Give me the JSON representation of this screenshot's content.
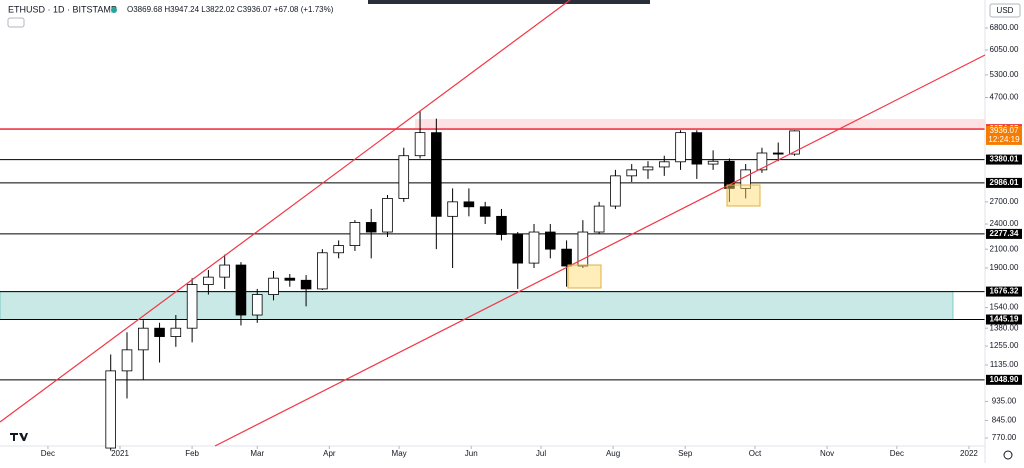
{
  "chart_data": {
    "type": "candlestick",
    "title": "ETHUSD · 1D · BITSTAMP",
    "subtitle": "O3869.68 H3947.24 L3822.02 C3936.07 +67.08 (+1.73%)",
    "currency": "USD",
    "last_price": 3936.07,
    "countdown": "12:24:19",
    "log_scale": true,
    "up_color": "#ffffff",
    "down_color": "#000000",
    "ylim": [
      738,
      7890
    ],
    "xlim": [
      -51.6,
      371.9
    ],
    "yticks": [
      {
        "value": 6800,
        "label": "6800.00"
      },
      {
        "value": 6050,
        "label": "6050.00"
      },
      {
        "value": 5300,
        "label": "5300.00"
      },
      {
        "value": 4700,
        "label": "4700.00"
      },
      {
        "value": 2700,
        "label": "2700.00"
      },
      {
        "value": 2400,
        "label": "2400.00"
      },
      {
        "value": 2100,
        "label": "2100.00"
      },
      {
        "value": 1900,
        "label": "1900.00"
      },
      {
        "value": 1540,
        "label": "1540.00"
      },
      {
        "value": 1380,
        "label": "1380.00"
      },
      {
        "value": 1255,
        "label": "1255.00"
      },
      {
        "value": 1135,
        "label": "1135.00"
      },
      {
        "value": 935,
        "label": "935.00"
      },
      {
        "value": 845,
        "label": "845.00"
      },
      {
        "value": 770,
        "label": "770.00"
      }
    ],
    "xticks": [
      {
        "value": -31,
        "label": "Dec"
      },
      {
        "value": 0,
        "label": "2021"
      },
      {
        "value": 31,
        "label": "Feb"
      },
      {
        "value": 59,
        "label": "Mar"
      },
      {
        "value": 90,
        "label": "Apr"
      },
      {
        "value": 120,
        "label": "May"
      },
      {
        "value": 151,
        "label": "Jun"
      },
      {
        "value": 181,
        "label": "Jul"
      },
      {
        "value": 212,
        "label": "Aug"
      },
      {
        "value": 243,
        "label": "Sep"
      },
      {
        "value": 273,
        "label": "Oct"
      },
      {
        "value": 304,
        "label": "Nov"
      },
      {
        "value": 334,
        "label": "Dec"
      },
      {
        "value": 365,
        "label": "2022"
      }
    ],
    "levels": [
      {
        "value": 3974.25,
        "label": "3974.25",
        "color": "#f23645"
      },
      {
        "value": 3380.01,
        "label": "3380.01",
        "color": "#000000"
      },
      {
        "value": 2986.01,
        "label": "2986.01",
        "color": "#000000"
      },
      {
        "value": 2277.34,
        "label": "2277.34",
        "color": "#000000"
      },
      {
        "value": 1676.32,
        "label": "1676.32",
        "color": "#000000"
      },
      {
        "value": 1445.19,
        "label": "1445.19",
        "color": "#000000"
      },
      {
        "value": 1048.9,
        "label": "1048.90",
        "color": "#000000"
      }
    ],
    "x": [
      -4,
      3,
      10,
      17,
      24,
      31,
      38,
      45,
      52,
      59,
      66,
      73,
      80,
      87,
      94,
      101,
      108,
      115,
      122,
      129,
      136,
      143,
      150,
      157,
      164,
      171,
      178,
      185,
      192,
      199,
      206,
      213,
      220,
      227,
      234,
      241,
      248,
      255,
      262,
      269,
      276,
      283,
      290
    ],
    "open": [
      730,
      1100,
      1230,
      1380,
      1320,
      1380,
      1740,
      1810,
      1930,
      1480,
      1650,
      1800,
      1780,
      1700,
      2060,
      2140,
      2420,
      2300,
      2750,
      3450,
      3900,
      2500,
      2700,
      2630,
      2500,
      2270,
      1950,
      2300,
      2100,
      1920,
      2300,
      2640,
      3100,
      3200,
      3250,
      3340,
      3900,
      3300,
      3350,
      2900,
      3200,
      3500,
      3480
    ],
    "high": [
      1200,
      1350,
      1440,
      1420,
      1480,
      1800,
      1880,
      2040,
      1960,
      1700,
      1870,
      1840,
      1830,
      2100,
      2200,
      2450,
      2600,
      2800,
      3600,
      4380,
      4200,
      2900,
      2900,
      2700,
      2600,
      2300,
      2400,
      2400,
      2200,
      2450,
      2700,
      3200,
      3300,
      3350,
      3450,
      3950,
      3950,
      3550,
      3400,
      3300,
      3600,
      3700,
      3950
    ],
    "low": [
      720,
      950,
      1050,
      1150,
      1250,
      1280,
      1650,
      1700,
      1400,
      1420,
      1600,
      1720,
      1550,
      1690,
      2000,
      2080,
      2000,
      2240,
      2700,
      3400,
      2100,
      1900,
      2500,
      2400,
      2200,
      1700,
      1900,
      2000,
      1720,
      1900,
      2280,
      2600,
      3000,
      3050,
      3100,
      3200,
      3050,
      3200,
      2700,
      2750,
      3150,
      3350,
      3450
    ],
    "close": [
      1100,
      1230,
      1380,
      1320,
      1380,
      1740,
      1810,
      1930,
      1480,
      1650,
      1800,
      1780,
      1700,
      2060,
      2140,
      2420,
      2300,
      2750,
      3450,
      3900,
      2500,
      2700,
      2630,
      2500,
      2270,
      1950,
      2300,
      2100,
      1920,
      2300,
      2640,
      3100,
      3200,
      3250,
      3340,
      3900,
      3300,
      3350,
      2900,
      3200,
      3500,
      3480,
      3936.07
    ]
  }
}
